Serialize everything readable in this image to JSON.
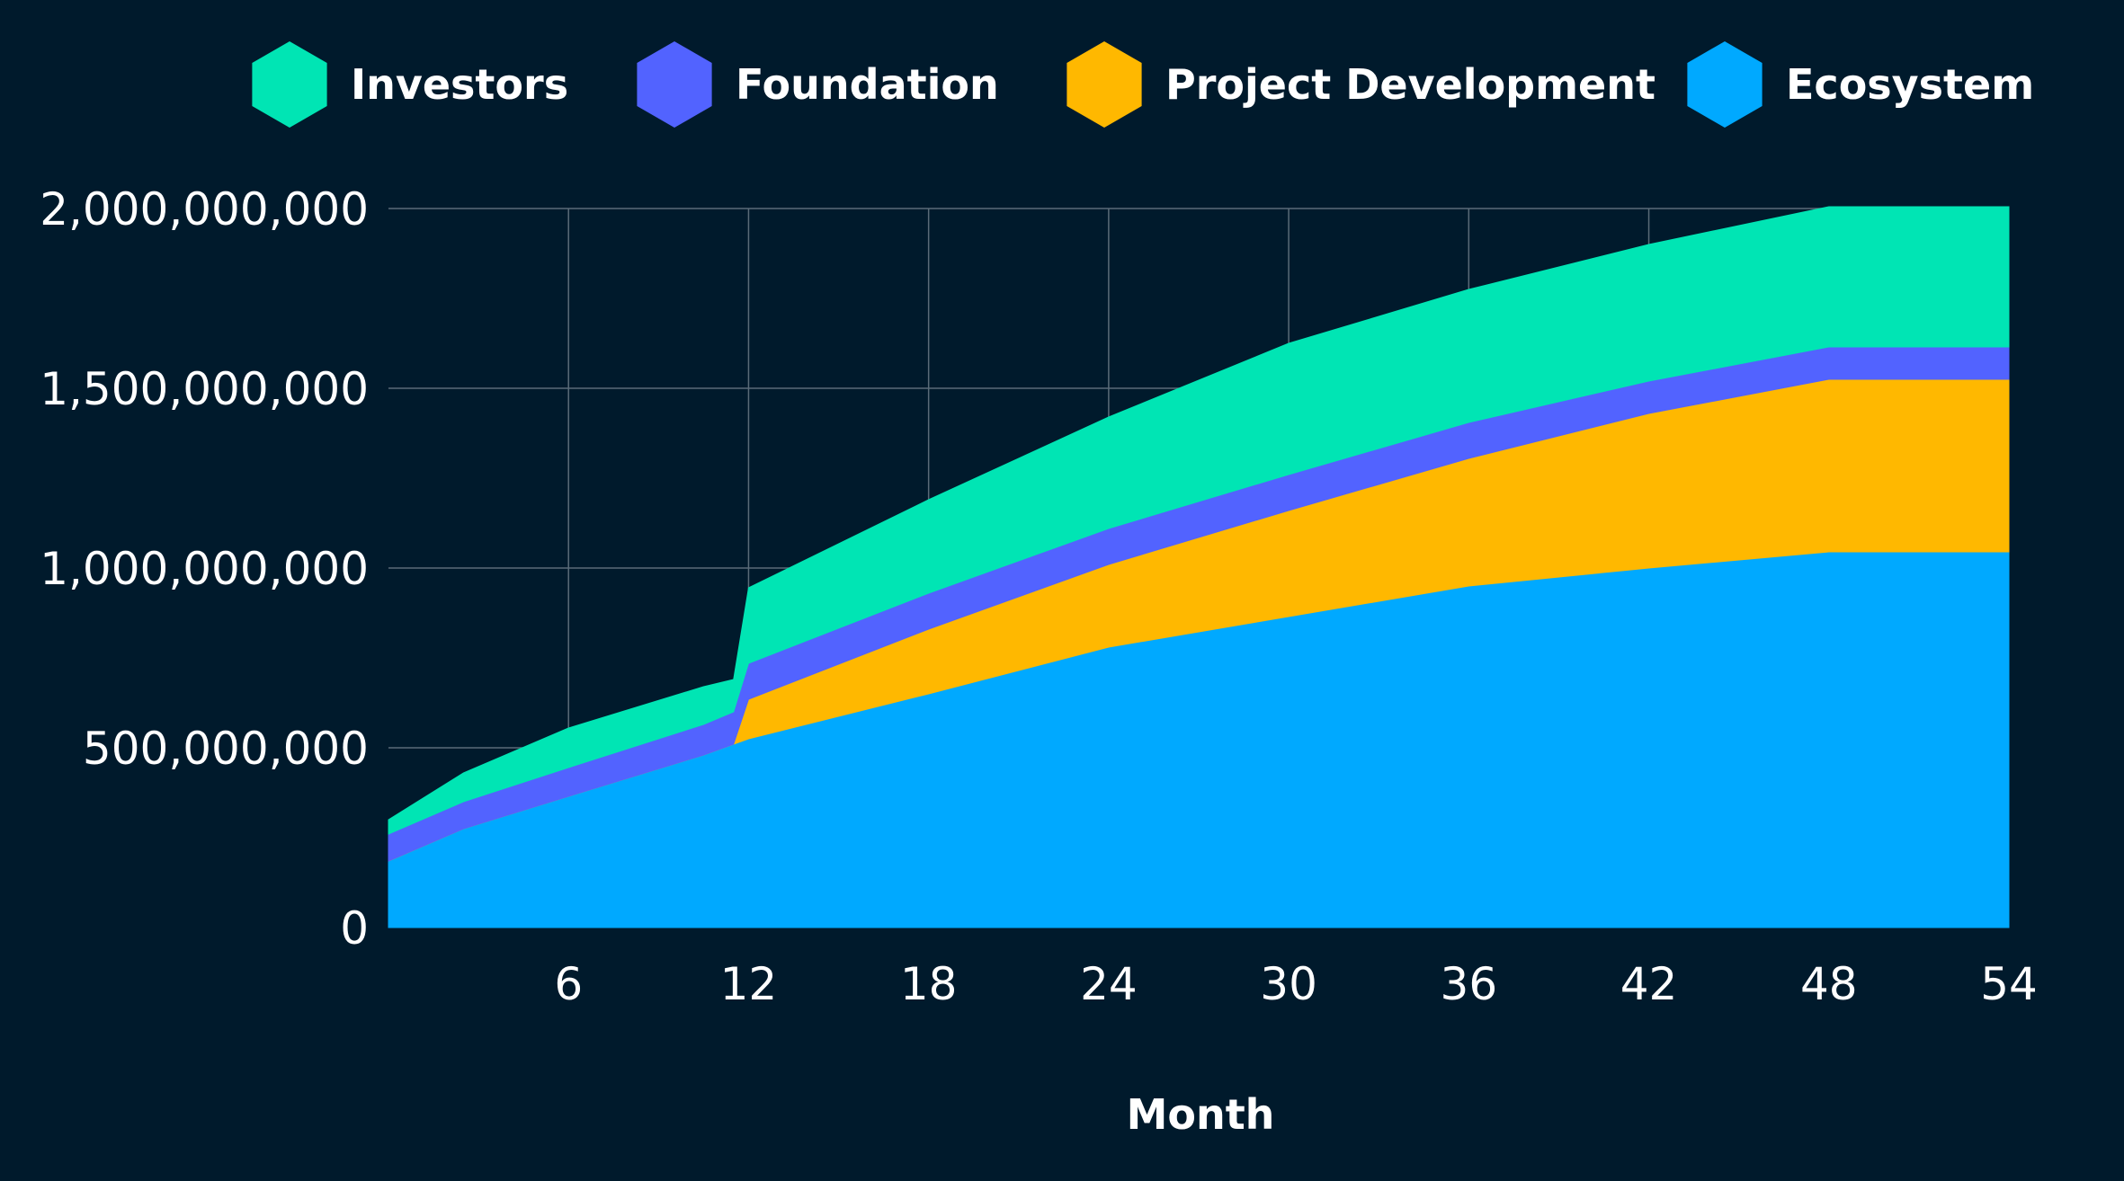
{
  "chart_data": {
    "type": "area",
    "stacked": true,
    "title": "",
    "xlabel": "Month",
    "ylabel": "",
    "xlim": [
      0,
      54
    ],
    "ylim": [
      0,
      2000000000
    ],
    "x_ticks": [
      6,
      12,
      18,
      24,
      30,
      36,
      42,
      48,
      54
    ],
    "y_ticks": [
      0,
      500000000,
      1000000000,
      1500000000,
      2000000000
    ],
    "x_tick_labels": [
      "6",
      "12",
      "18",
      "24",
      "30",
      "36",
      "42",
      "48",
      "54"
    ],
    "y_tick_labels": [
      "0",
      "500,000,000",
      "1,000,000,000",
      "1,500,000,000",
      "2,000,000,000"
    ],
    "grid": true,
    "legend_position": "top",
    "x": [
      0,
      2.5,
      6,
      10.5,
      11.5,
      12,
      18,
      24,
      30,
      36,
      42,
      48,
      54
    ],
    "series": [
      {
        "name": "Ecosystem",
        "color": "#00a9ff",
        "values": [
          185000000,
          275000000,
          365000000,
          480000000,
          510000000,
          525000000,
          650000000,
          780000000,
          865000000,
          950000000,
          1000000000,
          1045000000,
          1045000000
        ]
      },
      {
        "name": "Project Development",
        "color": "#ffb800",
        "values": [
          0,
          0,
          0,
          0,
          0,
          110000000,
          180000000,
          230000000,
          295000000,
          355000000,
          430000000,
          480000000,
          480000000
        ]
      },
      {
        "name": "Foundation",
        "color": "#5263ff",
        "values": [
          75000000,
          75000000,
          80000000,
          85000000,
          90000000,
          100000000,
          100000000,
          100000000,
          100000000,
          100000000,
          90000000,
          90000000,
          90000000
        ]
      },
      {
        "name": "Investors",
        "color": "#00e5b4",
        "values": [
          40000000,
          80000000,
          110000000,
          105000000,
          90000000,
          210000000,
          260000000,
          310000000,
          365000000,
          370000000,
          380000000,
          390000000,
          390000000
        ]
      }
    ],
    "legend_order": [
      "Investors",
      "Foundation",
      "Project Development",
      "Ecosystem"
    ]
  }
}
